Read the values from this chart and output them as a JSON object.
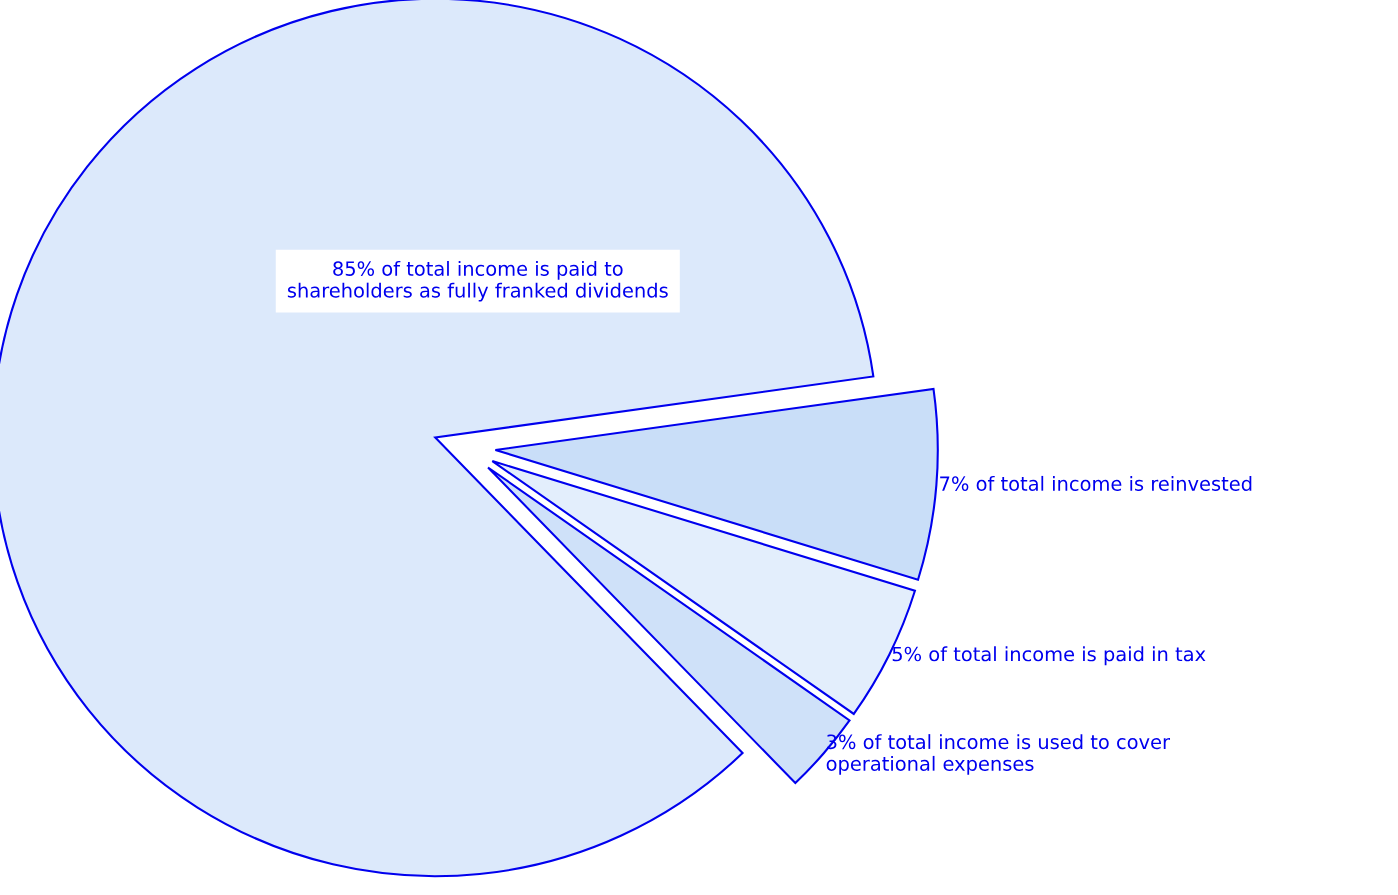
{
  "chart_data": {
    "type": "pie",
    "categories": [
      "85% of total income is paid to\nshareholders as fully franked dividends",
      "7% of total income is reinvested",
      "5% of total income is paid in tax",
      "3% of total income is used to cover\noperational expenses"
    ],
    "values": [
      85,
      7,
      5,
      3
    ],
    "colors": [
      "#dce9fb",
      "#c9def8",
      "#e3eefc",
      "#cfe1f9"
    ]
  }
}
